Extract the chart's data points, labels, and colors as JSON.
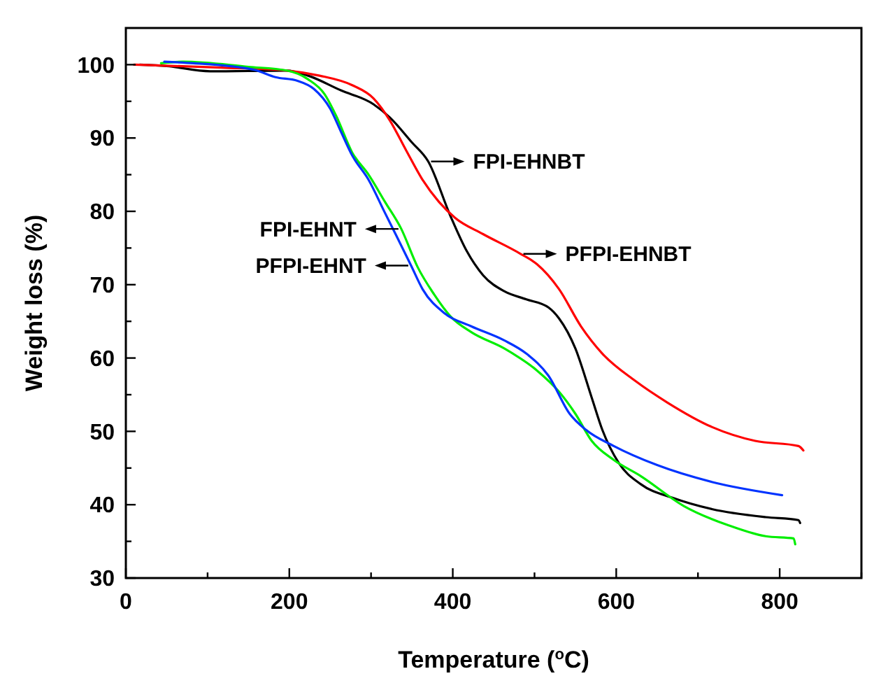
{
  "chart_data": {
    "type": "line",
    "xlabel": "Temperature ($^{o}$C)",
    "ylabel": "Weight loss (%)",
    "xlim": [
      0,
      900
    ],
    "ylim": [
      30,
      105
    ],
    "xticks": [
      0,
      {
        "value": 100,
        "label": null
      },
      200,
      {
        "value": 300,
        "label": null
      },
      400,
      {
        "value": 500,
        "label": null
      },
      600,
      {
        "value": 700,
        "label": null
      },
      800,
      {
        "value": 900,
        "label": null
      }
    ],
    "yticks": [
      30,
      {
        "value": 35,
        "label": null
      },
      40,
      {
        "value": 45,
        "label": null
      },
      50,
      {
        "value": 55,
        "label": null
      },
      60,
      {
        "value": 65,
        "label": null
      },
      70,
      {
        "value": 75,
        "label": null
      },
      80,
      {
        "value": 85,
        "label": null
      },
      90,
      {
        "value": 95,
        "label": null
      },
      100
    ],
    "annotations": [
      {
        "text": "FPI-EHNBT",
        "x": 370,
        "y": 86.8
      },
      {
        "text": "PFPI-EHNBT",
        "x": 483,
        "y": 74.2
      },
      {
        "text": "FPI-EHNT",
        "x": 337,
        "y": 77.6
      },
      {
        "text": "PFPI-EHNT",
        "x": 349,
        "y": 72.6
      }
    ],
    "grid": false,
    "marker": "none",
    "line_style": "solid",
    "series": [
      {
        "color": "#000000",
        "x": [
          17,
          50,
          103,
          197,
          223,
          263,
          303,
          323,
          350,
          370,
          397,
          417,
          437,
          463,
          490,
          517,
          530,
          550,
          570,
          583,
          603,
          630,
          670,
          717,
          783,
          823,
          825
        ],
        "values": [
          100,
          99.8,
          99.1,
          99.2,
          98.5,
          96.5,
          94.6,
          92.8,
          89.4,
          86.8,
          79.4,
          74.6,
          71.3,
          69.1,
          68,
          66.9,
          65.4,
          61.3,
          54.6,
          50.2,
          45.7,
          42.8,
          40.9,
          39.4,
          38.3,
          37.9,
          37.5
        ]
      },
      {
        "color": "#ff0000",
        "x": [
          10,
          117,
          197,
          237,
          277,
          303,
          323,
          343,
          363,
          383,
          403,
          437,
          483,
          503,
          530,
          557,
          583,
          623,
          663,
          717,
          770,
          823,
          829
        ],
        "values": [
          100,
          99.6,
          99.2,
          98.5,
          97.2,
          95.4,
          92.4,
          88.3,
          84.3,
          81.3,
          79.1,
          76.9,
          74.2,
          72.8,
          69.4,
          64.3,
          60.6,
          56.9,
          53.9,
          50.6,
          48.7,
          48,
          47.4
        ]
      },
      {
        "color": "#00ee00",
        "x": [
          43,
          70,
          150,
          197,
          223,
          243,
          257,
          277,
          297,
          317,
          337,
          357,
          377,
          397,
          423,
          463,
          503,
          530,
          550,
          570,
          597,
          630,
          683,
          737,
          783,
          817,
          819
        ],
        "values": [
          100.2,
          100.4,
          99.7,
          99.2,
          98,
          96,
          93.1,
          88,
          85,
          81.3,
          77.6,
          72.4,
          68.7,
          65.7,
          63.5,
          61.3,
          58.3,
          55.4,
          52.4,
          48.7,
          46.1,
          43.9,
          39.8,
          37.2,
          35.7,
          35.4,
          34.6
        ]
      },
      {
        "color": "#0033ff",
        "x": [
          47,
          83,
          157,
          183,
          210,
          230,
          250,
          263,
          277,
          297,
          317,
          330,
          349,
          363,
          390,
          423,
          463,
          490,
          517,
          543,
          563,
          597,
          650,
          717,
          803
        ],
        "values": [
          100.4,
          100.2,
          99.3,
          98.3,
          97.8,
          96.7,
          94,
          90.9,
          87.6,
          84.3,
          79.8,
          76.9,
          72.6,
          69.4,
          66.1,
          64.3,
          62.4,
          60.6,
          57.6,
          52.4,
          50.2,
          48,
          45.4,
          43.1,
          41.3
        ]
      }
    ]
  }
}
